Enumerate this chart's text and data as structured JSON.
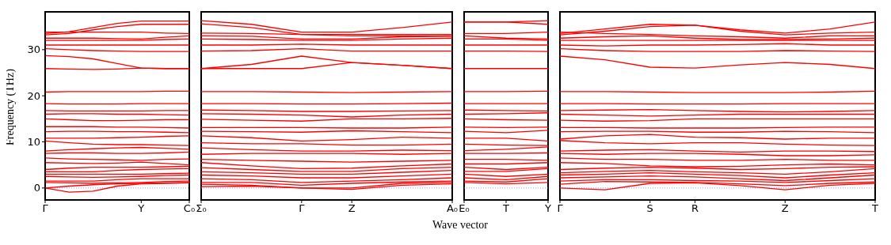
{
  "chart_data": [
    {
      "type": "line",
      "ylabel": "Frequency (THz)",
      "color": "#ff0000",
      "marker": "none",
      "line_style": "solid",
      "categories": [
        "Γ",
        null,
        null,
        null,
        "Y",
        null,
        "C₀"
      ],
      "ylim": [
        -2.6,
        38.2
      ],
      "yticks": [
        0,
        10,
        20,
        30
      ],
      "ref_lines": [
        {
          "axis": "y",
          "value": 0,
          "color": "#8080ff",
          "line_style": "dotted"
        }
      ],
      "series": [
        {
          "values": [
            33.5,
            33.9,
            34.8,
            35.7,
            36.2,
            36.2,
            36.2
          ]
        },
        {
          "values": [
            33.2,
            33.5,
            34.3,
            35.0,
            35.5,
            35.5,
            35.5
          ]
        },
        {
          "values": [
            33.8,
            33.8,
            33.8,
            33.8,
            33.8,
            33.6,
            33.5
          ]
        },
        {
          "values": [
            32.5,
            32.5,
            32.5,
            32.4,
            32.3,
            32.7,
            33.0
          ]
        },
        {
          "values": [
            32.0,
            32.0,
            32.0,
            32.0,
            32.0,
            32.2,
            32.3
          ]
        },
        {
          "values": [
            31.0,
            31.0,
            31.0,
            31.0,
            31.0,
            31.0,
            31.0
          ]
        },
        {
          "values": [
            30.2,
            30.0,
            29.8,
            29.7,
            29.6,
            29.6,
            29.6
          ]
        },
        {
          "values": [
            28.7,
            28.5,
            28.0,
            27.0,
            26.0,
            25.9,
            25.9
          ]
        },
        {
          "values": [
            25.9,
            25.8,
            25.7,
            25.8,
            26.0,
            25.9,
            25.9
          ]
        },
        {
          "values": [
            20.8,
            20.9,
            20.9,
            20.9,
            20.9,
            21.0,
            21.0
          ]
        },
        {
          "values": [
            18.3,
            18.2,
            18.2,
            18.2,
            18.3,
            18.3,
            18.3
          ]
        },
        {
          "values": [
            16.8,
            16.7,
            16.7,
            16.7,
            16.7,
            16.8,
            16.8
          ]
        },
        {
          "values": [
            16.0,
            16.1,
            16.1,
            16.0,
            16.0,
            15.9,
            15.8
          ]
        },
        {
          "values": [
            15.0,
            14.8,
            14.6,
            14.6,
            14.7,
            14.8,
            14.8
          ]
        },
        {
          "values": [
            13.3,
            13.3,
            13.3,
            13.2,
            13.2,
            13.1,
            13.0
          ]
        },
        {
          "values": [
            12.2,
            12.3,
            12.3,
            12.2,
            12.2,
            12.1,
            12.0
          ]
        },
        {
          "values": [
            10.8,
            10.8,
            10.8,
            10.9,
            11.0,
            11.2,
            11.3
          ]
        },
        {
          "values": [
            10.2,
            9.8,
            9.5,
            9.4,
            9.4,
            9.3,
            9.2
          ]
        },
        {
          "values": [
            8.0,
            8.3,
            8.5,
            8.7,
            8.8,
            8.6,
            8.4
          ]
        },
        {
          "values": [
            7.5,
            7.6,
            7.6,
            7.5,
            7.5,
            7.6,
            7.8
          ]
        },
        {
          "values": [
            6.5,
            6.3,
            6.2,
            6.1,
            6.0,
            6.2,
            6.3
          ]
        },
        {
          "values": [
            5.5,
            5.4,
            5.3,
            5.4,
            5.6,
            5.3,
            5.0
          ]
        },
        {
          "values": [
            4.0,
            4.3,
            4.5,
            4.5,
            4.5,
            4.6,
            4.7
          ]
        },
        {
          "values": [
            3.5,
            3.5,
            3.5,
            3.8,
            4.0,
            4.1,
            4.2
          ]
        },
        {
          "values": [
            3.0,
            3.0,
            3.0,
            3.0,
            3.0,
            3.1,
            3.2
          ]
        },
        {
          "values": [
            2.5,
            2.4,
            2.3,
            2.4,
            2.5,
            2.7,
            2.8
          ]
        },
        {
          "values": [
            1.5,
            1.5,
            1.5,
            1.8,
            2.0,
            2.0,
            2.0
          ]
        },
        {
          "values": [
            1.2,
            1.1,
            1.0,
            1.1,
            1.2,
            1.4,
            1.5
          ]
        },
        {
          "values": [
            0.0,
            0.4,
            0.7,
            0.9,
            1.0,
            1.1,
            1.2
          ]
        },
        {
          "values": [
            0.0,
            -0.9,
            -0.7,
            0.4,
            0.9,
            1.0,
            1.1
          ]
        }
      ]
    },
    {
      "type": "line",
      "xlabel": "Wave vector",
      "color": "#ff0000",
      "marker": "none",
      "line_style": "solid",
      "tick_labels": "x",
      "categories": [
        "Σ₀",
        null,
        "Γ",
        "Z",
        null,
        "A₀"
      ],
      "ylim": [
        -2.6,
        38.2
      ],
      "yticks": [
        0,
        10,
        20,
        30
      ],
      "ref_lines": [
        {
          "axis": "y",
          "value": 0,
          "color": "#8080ff",
          "line_style": "dotted"
        }
      ],
      "series": [
        {
          "values": [
            36.3,
            35.5,
            33.8,
            33.8,
            34.8,
            36.0
          ]
        },
        {
          "values": [
            35.6,
            34.8,
            33.3,
            33.3,
            33.3,
            33.3
          ]
        },
        {
          "values": [
            33.6,
            33.5,
            33.3,
            33.0,
            33.0,
            33.0
          ]
        },
        {
          "values": [
            33.0,
            32.9,
            32.3,
            32.3,
            32.8,
            32.9
          ]
        },
        {
          "values": [
            32.3,
            32.2,
            32.0,
            32.0,
            32.3,
            32.5
          ]
        },
        {
          "values": [
            31.0,
            31.0,
            31.2,
            31.0,
            31.0,
            31.0
          ]
        },
        {
          "values": [
            29.7,
            29.8,
            30.2,
            29.7,
            29.7,
            29.7
          ]
        },
        {
          "values": [
            25.9,
            26.8,
            28.6,
            27.2,
            26.6,
            25.9
          ]
        },
        {
          "values": [
            25.9,
            25.9,
            25.9,
            27.2,
            26.6,
            25.9
          ]
        },
        {
          "values": [
            20.9,
            20.9,
            20.8,
            20.7,
            20.8,
            20.9
          ]
        },
        {
          "values": [
            18.3,
            18.3,
            18.2,
            18.2,
            18.3,
            18.4
          ]
        },
        {
          "values": [
            16.9,
            16.8,
            16.6,
            16.6,
            16.7,
            16.8
          ]
        },
        {
          "values": [
            16.1,
            16.0,
            15.8,
            15.4,
            15.8,
            16.0
          ]
        },
        {
          "values": [
            14.9,
            14.7,
            14.5,
            15.0,
            15.0,
            15.1
          ]
        },
        {
          "values": [
            13.1,
            13.1,
            13.1,
            13.0,
            13.0,
            13.2
          ]
        },
        {
          "values": [
            12.3,
            12.2,
            12.1,
            12.4,
            12.2,
            12.0
          ]
        },
        {
          "values": [
            11.3,
            10.9,
            10.2,
            10.5,
            11.0,
            10.8
          ]
        },
        {
          "values": [
            9.8,
            9.6,
            9.6,
            9.3,
            9.3,
            9.5
          ]
        },
        {
          "values": [
            8.7,
            8.3,
            8.0,
            8.0,
            8.2,
            8.1
          ]
        },
        {
          "values": [
            7.3,
            7.5,
            7.5,
            7.5,
            7.3,
            7.5
          ]
        },
        {
          "values": [
            6.2,
            6.0,
            5.8,
            5.6,
            5.8,
            6.0
          ]
        },
        {
          "values": [
            5.5,
            4.8,
            4.2,
            4.3,
            4.8,
            5.2
          ]
        },
        {
          "values": [
            4.4,
            4.0,
            3.6,
            3.6,
            4.2,
            4.5
          ]
        },
        {
          "values": [
            3.5,
            3.3,
            3.0,
            3.0,
            3.4,
            3.8
          ]
        },
        {
          "values": [
            2.8,
            2.6,
            2.2,
            2.2,
            2.6,
            3.0
          ]
        },
        {
          "values": [
            2.0,
            1.8,
            1.2,
            1.5,
            1.8,
            2.2
          ]
        },
        {
          "values": [
            1.2,
            1.2,
            0.6,
            1.0,
            1.3,
            1.5
          ]
        },
        {
          "values": [
            0.8,
            0.6,
            0.0,
            0.0,
            1.0,
            1.2
          ]
        },
        {
          "values": [
            0.3,
            0.4,
            0.0,
            -0.3,
            0.6,
            0.9
          ]
        }
      ]
    },
    {
      "type": "line",
      "color": "#ff0000",
      "marker": "none",
      "line_style": "solid",
      "tick_labels": "x",
      "categories": [
        "E₀",
        "T",
        "Y"
      ],
      "ylim": [
        -2.6,
        38.2
      ],
      "yticks": [
        0,
        10,
        20,
        30
      ],
      "ref_lines": [
        {
          "axis": "y",
          "value": 0,
          "color": "#8080ff",
          "line_style": "dotted"
        }
      ],
      "series": [
        {
          "values": [
            36.0,
            36.0,
            36.3
          ]
        },
        {
          "values": [
            36.0,
            36.0,
            35.5
          ]
        },
        {
          "values": [
            33.5,
            33.5,
            33.8
          ]
        },
        {
          "values": [
            33.0,
            32.5,
            32.3
          ]
        },
        {
          "values": [
            32.3,
            32.3,
            32.0
          ]
        },
        {
          "values": [
            31.0,
            31.0,
            31.0
          ]
        },
        {
          "values": [
            29.7,
            29.7,
            29.6
          ]
        },
        {
          "values": [
            25.9,
            25.9,
            25.9
          ]
        },
        {
          "values": [
            20.9,
            20.9,
            21.0
          ]
        },
        {
          "values": [
            18.3,
            18.3,
            18.3
          ]
        },
        {
          "values": [
            16.9,
            16.8,
            16.7
          ]
        },
        {
          "values": [
            16.0,
            16.1,
            16.3
          ]
        },
        {
          "values": [
            15.0,
            14.8,
            14.7
          ]
        },
        {
          "values": [
            13.2,
            13.1,
            13.2
          ]
        },
        {
          "values": [
            12.3,
            12.0,
            12.5
          ]
        },
        {
          "values": [
            10.8,
            10.8,
            10.2
          ]
        },
        {
          "values": [
            9.5,
            9.3,
            9.2
          ]
        },
        {
          "values": [
            8.1,
            8.4,
            8.9
          ]
        },
        {
          "values": [
            7.5,
            7.5,
            7.6
          ]
        },
        {
          "values": [
            6.2,
            6.2,
            6.0
          ]
        },
        {
          "values": [
            5.2,
            5.2,
            5.5
          ]
        },
        {
          "values": [
            4.5,
            4.0,
            4.5
          ]
        },
        {
          "values": [
            3.6,
            3.6,
            4.2
          ]
        },
        {
          "values": [
            3.0,
            2.5,
            3.0
          ]
        },
        {
          "values": [
            2.2,
            1.8,
            2.5
          ]
        },
        {
          "values": [
            1.5,
            1.3,
            2.0
          ]
        },
        {
          "values": [
            1.2,
            0.9,
            1.2
          ]
        }
      ]
    },
    {
      "type": "line",
      "color": "#ff0000",
      "marker": "none",
      "line_style": "solid",
      "tick_labels": "x",
      "categories": [
        "Γ",
        null,
        "S",
        "R",
        null,
        "Z",
        null,
        "T"
      ],
      "ylim": [
        -2.6,
        38.2
      ],
      "yticks": [
        0,
        10,
        20,
        30
      ],
      "ref_lines": [
        {
          "axis": "y",
          "value": 0,
          "color": "#8080ff",
          "line_style": "dotted"
        }
      ],
      "series": [
        {
          "values": [
            33.5,
            34.5,
            35.5,
            35.3,
            34.3,
            33.6,
            34.5,
            36.0
          ]
        },
        {
          "values": [
            33.2,
            34.0,
            35.0,
            35.3,
            34.0,
            33.2,
            33.6,
            33.8
          ]
        },
        {
          "values": [
            33.8,
            33.5,
            33.3,
            33.0,
            32.8,
            32.5,
            33.0,
            33.0
          ]
        },
        {
          "values": [
            32.5,
            32.8,
            33.0,
            32.5,
            32.2,
            32.2,
            32.3,
            32.5
          ]
        },
        {
          "values": [
            32.0,
            32.0,
            32.0,
            32.0,
            32.0,
            32.0,
            32.0,
            32.0
          ]
        },
        {
          "values": [
            31.0,
            30.8,
            31.0,
            31.0,
            31.1,
            31.3,
            31.0,
            31.0
          ]
        },
        {
          "values": [
            30.2,
            29.8,
            29.6,
            29.6,
            29.6,
            29.8,
            29.7,
            29.6
          ]
        },
        {
          "values": [
            28.6,
            27.8,
            26.2,
            26.0,
            26.7,
            27.2,
            26.8,
            25.9
          ]
        },
        {
          "values": [
            20.9,
            20.9,
            20.8,
            20.7,
            20.7,
            20.7,
            20.8,
            21.0
          ]
        },
        {
          "values": [
            18.3,
            18.3,
            18.2,
            18.2,
            18.2,
            18.3,
            18.3,
            18.3
          ]
        },
        {
          "values": [
            16.8,
            16.9,
            17.0,
            16.8,
            16.6,
            16.5,
            16.6,
            16.8
          ]
        },
        {
          "values": [
            16.0,
            15.8,
            15.6,
            15.8,
            16.0,
            16.0,
            16.0,
            16.0
          ]
        },
        {
          "values": [
            14.7,
            14.5,
            14.6,
            15.0,
            15.0,
            15.0,
            15.0,
            15.0
          ]
        },
        {
          "values": [
            13.1,
            13.1,
            13.0,
            13.0,
            13.0,
            13.1,
            13.2,
            13.2
          ]
        },
        {
          "values": [
            12.2,
            12.3,
            12.3,
            12.1,
            12.1,
            12.3,
            12.2,
            12.0
          ]
        },
        {
          "values": [
            10.6,
            11.3,
            11.6,
            11.0,
            10.9,
            10.6,
            10.8,
            10.8
          ]
        },
        {
          "values": [
            10.3,
            9.8,
            9.6,
            9.8,
            9.8,
            9.5,
            9.3,
            9.2
          ]
        },
        {
          "values": [
            8.0,
            8.2,
            8.3,
            8.0,
            7.8,
            8.0,
            8.0,
            7.9
          ]
        },
        {
          "values": [
            7.5,
            7.3,
            7.5,
            7.5,
            7.3,
            7.0,
            7.0,
            7.2
          ]
        },
        {
          "values": [
            6.5,
            6.2,
            6.2,
            6.0,
            6.0,
            6.2,
            6.0,
            6.0
          ]
        },
        {
          "values": [
            5.5,
            5.3,
            4.8,
            4.6,
            4.7,
            5.0,
            5.2,
            5.0
          ]
        },
        {
          "values": [
            4.0,
            4.3,
            4.5,
            4.3,
            4.0,
            4.2,
            4.5,
            4.6
          ]
        },
        {
          "values": [
            3.3,
            3.6,
            3.8,
            3.5,
            3.3,
            3.0,
            3.5,
            4.2
          ]
        },
        {
          "values": [
            2.8,
            3.0,
            3.3,
            3.0,
            2.7,
            2.2,
            2.8,
            3.3
          ]
        },
        {
          "values": [
            2.2,
            2.4,
            2.6,
            2.4,
            2.0,
            1.6,
            2.2,
            2.8
          ]
        },
        {
          "values": [
            1.5,
            1.8,
            1.8,
            1.6,
            1.5,
            1.2,
            1.6,
            2.0
          ]
        },
        {
          "values": [
            0.8,
            1.4,
            1.3,
            1.2,
            0.9,
            0.5,
            1.0,
            1.3
          ]
        },
        {
          "values": [
            0.0,
            -0.4,
            1.0,
            1.1,
            0.5,
            -0.4,
            0.6,
            1.0
          ]
        }
      ]
    }
  ]
}
